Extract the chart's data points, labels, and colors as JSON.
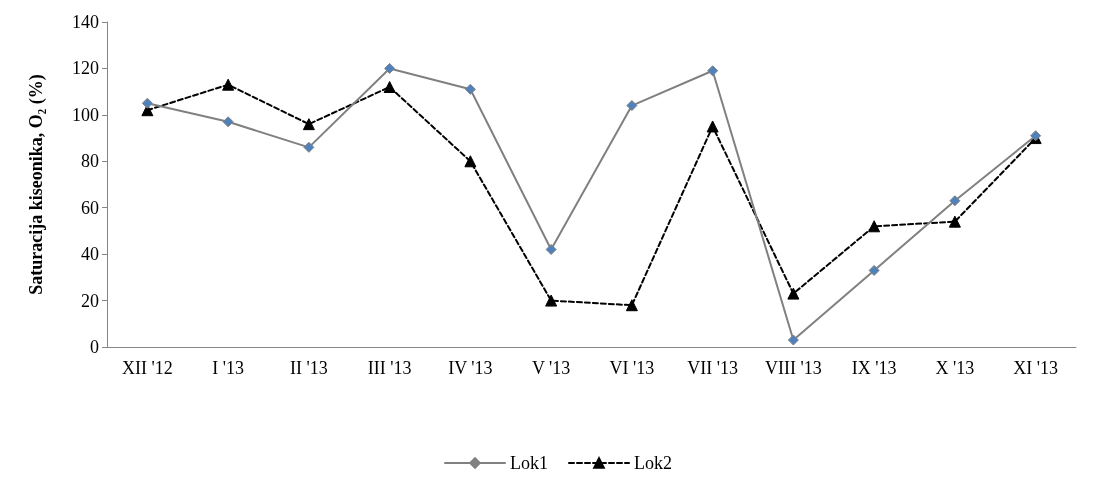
{
  "chart_data": {
    "type": "line",
    "ylabel": "Saturacija kiseonika, O₂ (%)",
    "categories": [
      "XII '12",
      "I '13",
      "II '13",
      "III '13",
      "IV '13",
      "V '13",
      "VI '13",
      "VII '13",
      "VIII '13",
      "IX '13",
      "X '13",
      "XI '13"
    ],
    "series": [
      {
        "name": "Lok1",
        "color": "#808080",
        "marker": "diamond",
        "line_style": "solid",
        "colors": [
          "#4f81bd",
          "#4f81bd",
          "#4f81bd",
          "#4f81bd",
          "#4f81bd",
          "#4f81bd",
          "#4f81bd",
          "#4f81bd",
          "#4f81bd",
          "#4f81bd",
          "#4f81bd",
          "#4f81bd"
        ],
        "values": [
          105,
          97,
          86,
          120,
          111,
          42,
          104,
          119,
          3,
          33,
          63,
          91
        ]
      },
      {
        "name": "Lok2",
        "color": "#000000",
        "marker": "triangle",
        "line_style": "dashed",
        "values": [
          102,
          113,
          96,
          112,
          80,
          20,
          18,
          95,
          23,
          52,
          54,
          90
        ]
      }
    ],
    "ylim": [
      0,
      140
    ],
    "yticks": [
      0,
      20,
      40,
      60,
      80,
      100,
      120,
      140
    ],
    "grid": false,
    "legend": "bottom"
  }
}
